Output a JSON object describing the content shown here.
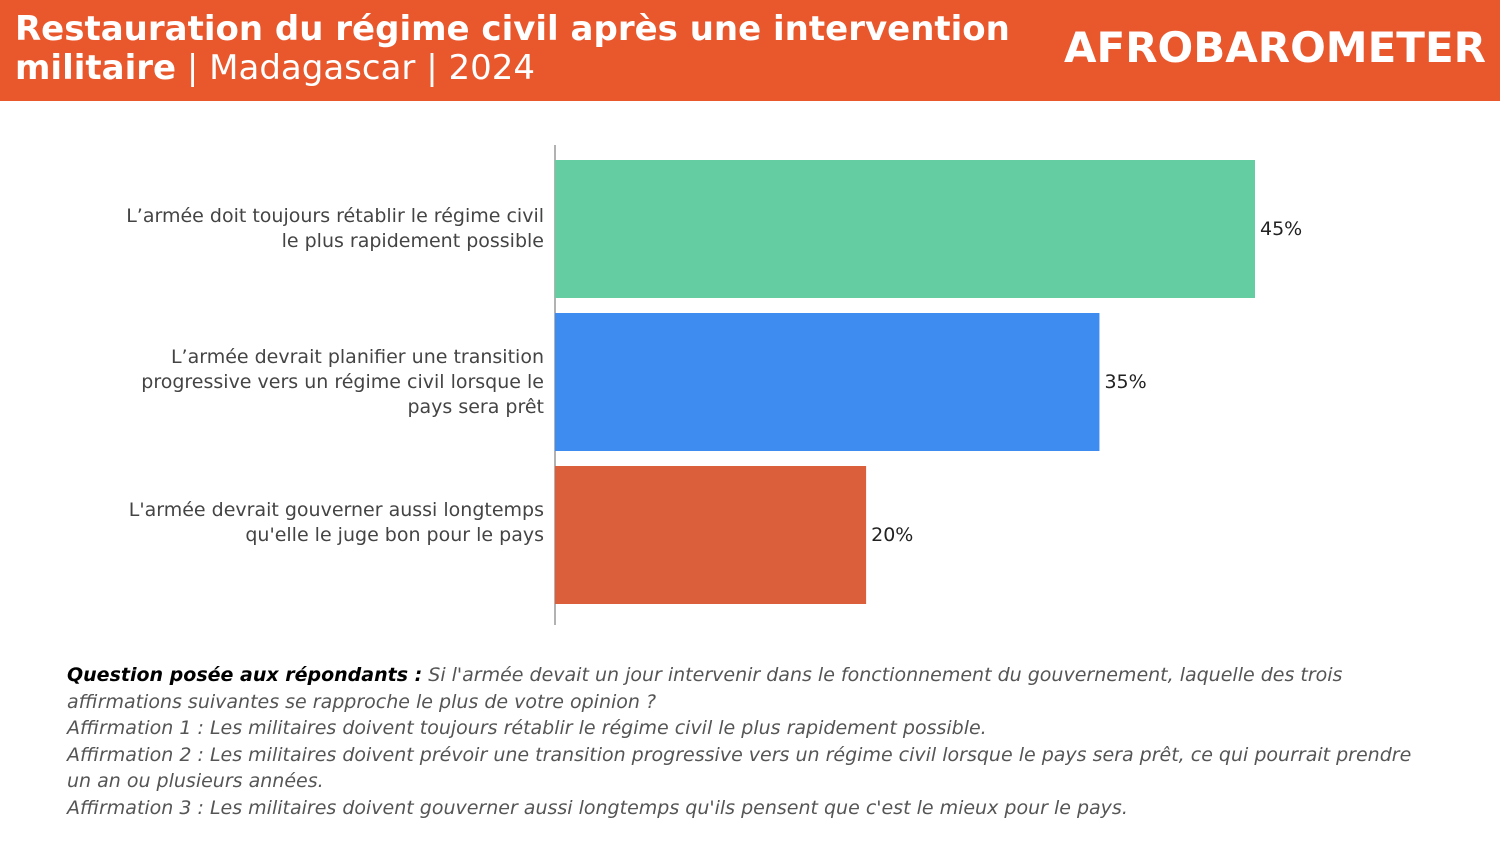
{
  "header": {
    "title_bold": "Restauration du régime civil après une intervention militaire",
    "title_sep1": " | ",
    "country": "Madagascar",
    "title_sep2": " | ",
    "year": "2024",
    "logo": "AFROBAROMETER"
  },
  "colors": {
    "header": "#e9572d",
    "bar1": "#64cda1",
    "bar2": "#3f8cf0",
    "bar3": "#db5f3a"
  },
  "chart_data": {
    "type": "bar",
    "orientation": "horizontal",
    "categories": [
      "L’armée doit toujours rétablir le régime civil le plus rapidement possible",
      "L’armée devrait planifier une transition progressive vers un régime civil lorsque le pays sera prêt",
      "L'armée devrait gouverner aussi longtemps qu'elle le juge bon pour le pays"
    ],
    "values": [
      45,
      35,
      20
    ],
    "labels": [
      "45%",
      "35%",
      "20%"
    ],
    "xlim": [
      0,
      100
    ],
    "grid": false
  },
  "note": {
    "question_label": "Question posée aux répondants :",
    "question": " Si l'armée devait un jour intervenir dans le fonctionnement du gouvernement, laquelle des trois affirmations suivantes se rapproche le plus de votre opinion ?",
    "a1": "Affirmation 1 : Les militaires doivent toujours rétablir le régime civil le plus rapidement possible.",
    "a2": "Affirmation 2 : Les militaires doivent prévoir une transition progressive vers un régime civil lorsque le pays sera prêt, ce qui pourrait prendre un an ou plusieurs années.",
    "a3": "Affirmation 3 : Les militaires doivent gouverner aussi longtemps qu'ils pensent que c'est le mieux pour le pays."
  }
}
